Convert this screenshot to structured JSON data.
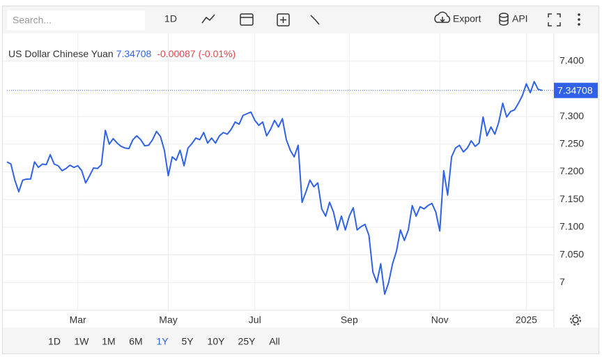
{
  "toolbar": {
    "search_placeholder": "Search...",
    "interval": "1D",
    "export": "Export",
    "api": "API"
  },
  "ranges": [
    "1D",
    "1W",
    "1M",
    "6M",
    "1Y",
    "5Y",
    "10Y",
    "25Y",
    "All"
  ],
  "active_range": 4,
  "chart_data": {
    "type": "line",
    "title": "US Dollar Chinese Yuan",
    "change": -0.00087,
    "change_percent": {
      "value": -0.01,
      "label": "(-0.01%)"
    },
    "series": [
      {
        "name": "US Dollar Chinese Yuan",
        "color": "#2f62e8",
        "values": [
          7.218,
          7.214,
          7.185,
          7.164,
          7.185,
          7.187,
          7.187,
          7.218,
          7.208,
          7.214,
          7.213,
          7.231,
          7.214,
          7.211,
          7.202,
          7.206,
          7.212,
          7.208,
          7.211,
          7.202,
          7.18,
          7.193,
          7.207,
          7.206,
          7.213,
          7.275,
          7.25,
          7.26,
          7.252,
          7.246,
          7.243,
          7.242,
          7.258,
          7.265,
          7.258,
          7.247,
          7.248,
          7.258,
          7.273,
          7.264,
          7.239,
          7.193,
          7.227,
          7.221,
          7.239,
          7.211,
          7.243,
          7.251,
          7.261,
          7.258,
          7.271,
          7.252,
          7.261,
          7.252,
          7.265,
          7.271,
          7.268,
          7.277,
          7.29,
          7.286,
          7.302,
          7.305,
          7.308,
          7.293,
          7.284,
          7.29,
          7.265,
          7.277,
          7.293,
          7.281,
          7.296,
          7.258,
          7.239,
          7.227,
          7.248,
          7.145,
          7.164,
          7.185,
          7.173,
          7.18,
          7.133,
          7.12,
          7.145,
          7.127,
          7.095,
          7.12,
          7.095,
          7.12,
          7.135,
          7.095,
          7.101,
          7.105,
          7.085,
          7.019,
          7.0,
          7.034,
          6.979,
          7.0,
          7.034,
          7.057,
          7.095,
          7.076,
          7.095,
          7.139,
          7.12,
          7.137,
          7.133,
          7.139,
          7.143,
          7.127,
          7.093,
          7.202,
          7.158,
          7.227,
          7.243,
          7.248,
          7.236,
          7.243,
          7.256,
          7.246,
          7.252,
          7.299,
          7.265,
          7.281,
          7.268,
          7.29,
          7.324,
          7.299,
          7.309,
          7.312,
          7.324,
          7.338,
          7.359,
          7.343,
          7.363,
          7.349,
          7.34708
        ]
      }
    ],
    "xlim": [
      0,
      136
    ],
    "xticks": [
      {
        "value": 18,
        "label": "Mar"
      },
      {
        "value": 41,
        "label": "May"
      },
      {
        "value": 63,
        "label": "Jul"
      },
      {
        "value": 87,
        "label": "Sep"
      },
      {
        "value": 110,
        "label": "Nov"
      },
      {
        "value": 132,
        "label": "2025"
      }
    ],
    "ylim": [
      6.95,
      7.45
    ],
    "yticks": [
      7,
      {
        "value": 7.05,
        "label": "7.050"
      },
      {
        "value": 7.1,
        "label": "7.100"
      },
      {
        "value": 7.15,
        "label": "7.150"
      },
      {
        "value": 7.2,
        "label": "7.200"
      },
      {
        "value": 7.25,
        "label": "7.250"
      },
      {
        "value": 7.3,
        "label": "7.300"
      },
      {
        "value": 7.4,
        "label": "7.400"
      }
    ],
    "grid": true
  }
}
